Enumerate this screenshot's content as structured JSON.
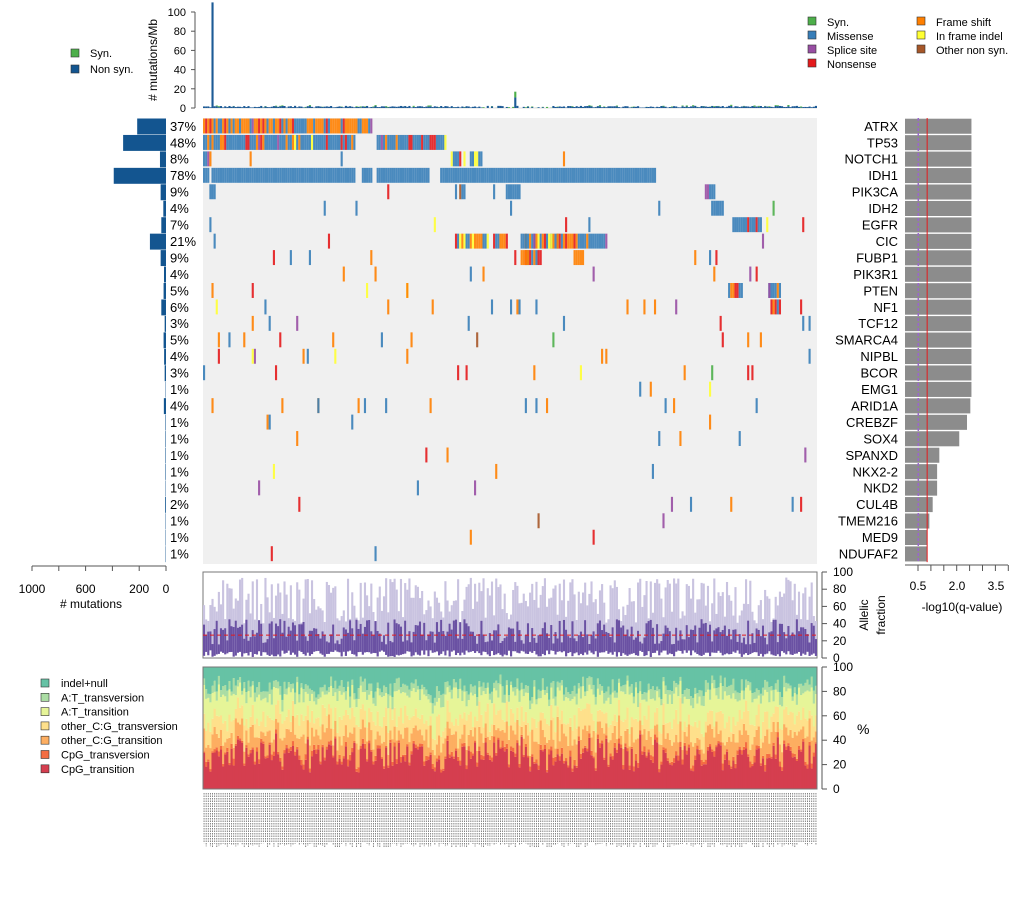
{
  "chart_data": [
    {
      "id": "tmb",
      "type": "bar",
      "ylabel": "# mutations/Mb",
      "ylim": [
        0,
        100
      ],
      "yticks": [
        0,
        20,
        40,
        60,
        80,
        100
      ],
      "legend": [
        {
          "label": "Syn.",
          "color": "#4DAF4A"
        },
        {
          "label": "Non syn.",
          "color": "#135590"
        }
      ],
      "legend_position": "left",
      "n_samples": 290,
      "outliers": [
        {
          "sample_index": 4,
          "value_nonsyn": 115
        },
        {
          "sample_index": 147,
          "value_nonsyn": 11,
          "value_syn": 6
        }
      ],
      "typical_value": 1.5
    },
    {
      "id": "oncoprint",
      "type": "heatmap",
      "genes": [
        "ATRX",
        "TP53",
        "NOTCH1",
        "IDH1",
        "PIK3CA",
        "IDH2",
        "EGFR",
        "CIC",
        "FUBP1",
        "PIK3R1",
        "PTEN",
        "NF1",
        "TCF12",
        "SMARCA4",
        "NIPBL",
        "BCOR",
        "EMG1",
        "ARID1A",
        "CREBZF",
        "SOX4",
        "SPANXD",
        "NKX2-2",
        "NKD2",
        "CUL4B",
        "TMEM216",
        "MED9",
        "NDUFAF2"
      ],
      "percent_labels": [
        "37%",
        "48%",
        "8%",
        "78%",
        "9%",
        "4%",
        "7%",
        "21%",
        "9%",
        "4%",
        "5%",
        "6%",
        "3%",
        "5%",
        "4%",
        "3%",
        "1%",
        "4%",
        "1%",
        "1%",
        "1%",
        "1%",
        "1%",
        "2%",
        "1%",
        "1%",
        "1%"
      ],
      "legend": [
        {
          "label": "Syn.",
          "color": "#4DAF4A"
        },
        {
          "label": "Missense",
          "color": "#377EB8"
        },
        {
          "label": "Splice site",
          "color": "#984EA3"
        },
        {
          "label": "Nonsense",
          "color": "#E41A1C"
        },
        {
          "label": "Frame shift",
          "color": "#FF7F00"
        },
        {
          "label": "In frame indel",
          "color": "#FFFF33"
        },
        {
          "label": "Other non syn.",
          "color": "#A65628"
        }
      ],
      "legend_position": "top-right",
      "background": "#F0F0F0"
    },
    {
      "id": "gene-counts",
      "type": "bar",
      "orientation": "horizontal",
      "xlabel": "# mutations",
      "xticks": [
        "1000",
        "600",
        "200",
        "0"
      ],
      "xlim": [
        1000,
        0
      ],
      "values": [
        215,
        320,
        45,
        390,
        40,
        20,
        35,
        120,
        40,
        15,
        18,
        35,
        10,
        18,
        14,
        10,
        3,
        16,
        4,
        4,
        4,
        4,
        3,
        6,
        3,
        3,
        3
      ],
      "color": "#135590"
    },
    {
      "id": "qvalue",
      "type": "bar",
      "orientation": "horizontal",
      "xlabel": "-log10(q-value)",
      "xticks": [
        "0.5",
        "2.0",
        "3.5"
      ],
      "xlim": [
        0,
        4.0
      ],
      "values": [
        3.0,
        3.0,
        3.0,
        3.0,
        3.0,
        3.0,
        3.0,
        3.0,
        3.0,
        3.0,
        3.0,
        3.0,
        3.0,
        3.0,
        3.0,
        3.0,
        3.0,
        2.95,
        2.8,
        2.45,
        1.55,
        1.45,
        1.45,
        1.25,
        1.1,
        1.0,
        1.0
      ],
      "threshold_solid": 1.0,
      "threshold_dashed": 0.6,
      "threshold_solid_color": "#E41A1C",
      "threshold_dashed_color": "#9966CC",
      "bar_color": "#8C8C8C"
    },
    {
      "id": "allelic-fraction",
      "type": "bar",
      "ylabel_lines": [
        "Allelic",
        "fraction"
      ],
      "ylim": [
        0,
        100
      ],
      "yticks": [
        0,
        20,
        40,
        60,
        80,
        100
      ],
      "median_line": 26,
      "colors": {
        "max": "#C9C3E0",
        "median": "#6A51A3",
        "median_line": "#E41A1C"
      }
    },
    {
      "id": "spectrum",
      "type": "bar",
      "stacked": true,
      "ylabel": "%",
      "ylim": [
        0,
        100
      ],
      "yticks": [
        0,
        20,
        40,
        60,
        80,
        100
      ],
      "series": [
        {
          "name": "CpG_transition",
          "color": "#D53E4F",
          "mean": 28
        },
        {
          "name": "CpG_transversion",
          "color": "#F46D43",
          "mean": 3
        },
        {
          "name": "other_C:G_transition",
          "color": "#FDAE61",
          "mean": 14
        },
        {
          "name": "other_C:G_transversion",
          "color": "#FEE08B",
          "mean": 14
        },
        {
          "name": "A:T_transition",
          "color": "#E6F598",
          "mean": 18
        },
        {
          "name": "A:T_transversion",
          "color": "#ABDDA4",
          "mean": 7
        },
        {
          "name": "indel+null",
          "color": "#66C2A5",
          "mean": 16
        }
      ],
      "legend_order": [
        "indel+null",
        "A:T_transversion",
        "A:T_transition",
        "other_C:G_transversion",
        "other_C:G_transition",
        "CpG_transversion",
        "CpG_transition"
      ],
      "legend_position": "left"
    }
  ]
}
